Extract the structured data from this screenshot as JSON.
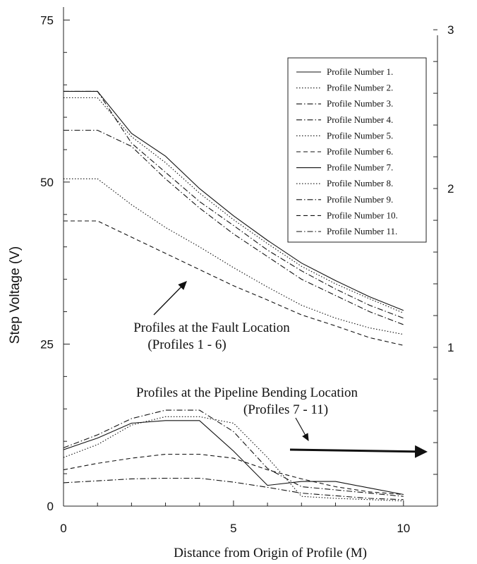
{
  "chart_data": {
    "type": "line",
    "xlabel": "Distance from Origin of Profile (M)",
    "ylabel": "Step Voltage (V)",
    "xlim": [
      0,
      11
    ],
    "ylim": [
      0,
      77
    ],
    "x_ticks": [
      0,
      5,
      10
    ],
    "y_ticks": [
      0,
      25,
      50,
      75
    ],
    "right_axis_ticks": [
      {
        "label": "1",
        "value": 24.5
      },
      {
        "label": "2",
        "value": 49
      },
      {
        "label": "3",
        "value": 73.5
      }
    ],
    "x": [
      0,
      1,
      2,
      3,
      4,
      5,
      6,
      7,
      8,
      9,
      10
    ],
    "legend_position": "top-right",
    "series": [
      {
        "name": "Profile Number  1.",
        "style": "solid",
        "values": [
          64.0,
          64.0,
          57.5,
          54.0,
          49.0,
          44.8,
          41.0,
          37.5,
          34.8,
          32.3,
          30.2
        ]
      },
      {
        "name": "Profile Number  2.",
        "style": "dotted",
        "values": [
          63.0,
          63.0,
          57.0,
          53.0,
          48.3,
          44.2,
          40.5,
          37.0,
          34.3,
          32.0,
          29.8
        ]
      },
      {
        "name": "Profile Number  3.",
        "style": "dashdot",
        "values": [
          64.0,
          64.0,
          56.0,
          51.5,
          47.0,
          43.3,
          39.5,
          36.3,
          33.5,
          31.0,
          29.0
        ]
      },
      {
        "name": "Profile Number  4.",
        "style": "dashdot",
        "values": [
          58.0,
          58.0,
          55.5,
          50.5,
          46.0,
          42.0,
          38.5,
          35.0,
          32.5,
          30.0,
          28.0
        ]
      },
      {
        "name": "Profile Number  5.",
        "style": "dotted",
        "values": [
          50.5,
          50.5,
          46.5,
          43.0,
          40.0,
          36.8,
          33.8,
          31.0,
          29.0,
          27.5,
          26.5
        ]
      },
      {
        "name": "Profile Number  6.",
        "style": "dashed",
        "values": [
          44.0,
          44.0,
          41.5,
          39.0,
          36.5,
          34.0,
          31.8,
          29.5,
          27.8,
          26.0,
          24.8
        ]
      },
      {
        "name": "Profile Number  7.",
        "style": "solid",
        "values": [
          8.7,
          10.5,
          12.8,
          13.2,
          13.2,
          8.5,
          3.2,
          3.8,
          3.8,
          2.8,
          1.8
        ]
      },
      {
        "name": "Profile Number  8.",
        "style": "dotted",
        "values": [
          7.5,
          9.5,
          12.5,
          13.8,
          13.8,
          12.8,
          7.5,
          1.5,
          1.2,
          1.0,
          0.8
        ]
      },
      {
        "name": "Profile Number  9.",
        "style": "dashdot",
        "values": [
          9.0,
          11.0,
          13.5,
          14.8,
          14.8,
          11.5,
          5.8,
          3.0,
          2.5,
          2.0,
          1.5
        ]
      },
      {
        "name": "Profile Number  10.",
        "style": "dashed",
        "values": [
          5.6,
          6.6,
          7.4,
          8.0,
          8.0,
          7.4,
          5.6,
          4.2,
          3.0,
          2.2,
          1.8
        ]
      },
      {
        "name": "Profile Number  11.",
        "style": "dashdot",
        "values": [
          3.6,
          3.9,
          4.2,
          4.3,
          4.3,
          3.7,
          2.9,
          2.0,
          1.6,
          1.2,
          1.0
        ]
      }
    ],
    "annotations": [
      {
        "id": "fault",
        "lines": [
          "Profiles at the Fault Location",
          "(Profiles 1 - 6)"
        ]
      },
      {
        "id": "pipeline",
        "lines": [
          "Profiles at the Pipeline Bending Location",
          "(Profiles 7 - 11)"
        ]
      }
    ]
  },
  "colors": {
    "line": "#111111",
    "axis": "#222222",
    "background": "#ffffff"
  }
}
